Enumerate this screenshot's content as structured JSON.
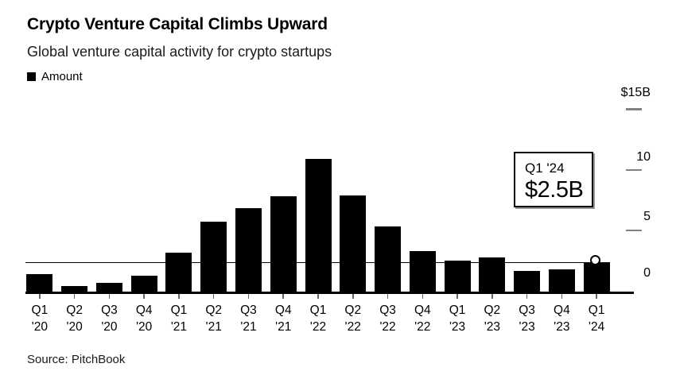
{
  "header": {
    "title": "Crypto Venture Capital Climbs Upward",
    "subtitle": "Global venture capital activity for crypto startups"
  },
  "legend": {
    "items": [
      {
        "label": "Amount",
        "color": "#000000",
        "swatch": "black-square"
      }
    ]
  },
  "chart_data": {
    "type": "bar",
    "title": "Crypto Venture Capital Climbs Upward",
    "subtitle": "Global venture capital activity for crypto startups",
    "series_name": "Amount",
    "categories": [
      "Q1 '20",
      "Q2 '20",
      "Q3 '20",
      "Q4 '20",
      "Q1 '21",
      "Q2 '21",
      "Q3 '21",
      "Q4 '21",
      "Q1 '22",
      "Q2 '22",
      "Q3 '22",
      "Q4 '22",
      "Q1 '23",
      "Q2 '23",
      "Q3 '23",
      "Q4 '23",
      "Q1 '24"
    ],
    "values": [
      1.5,
      0.5,
      0.8,
      1.4,
      3.3,
      5.8,
      6.9,
      7.9,
      11.0,
      8.0,
      5.4,
      3.4,
      2.6,
      2.9,
      1.8,
      1.9,
      2.5
    ],
    "unit": "billion USD",
    "xlabel": "",
    "ylabel": "$B",
    "ylim": [
      0,
      15
    ],
    "y_tick_labels": [
      "$15B",
      "10",
      "5",
      "0"
    ],
    "y_tick_values": [
      15,
      10,
      5,
      0
    ],
    "grid": "off",
    "legend_position": "top-left",
    "bar_color": "#000000",
    "reference_line_value": 2.5,
    "highlight_point": {
      "category": "Q1 '24",
      "value": 2.5,
      "marker": "white-circle"
    }
  },
  "annotation": {
    "label": "Q1 '24",
    "value": "$2.5B"
  },
  "footer": {
    "source": "Source: PitchBook"
  },
  "colors": {
    "background": "#ffffff",
    "bar": "#000000",
    "axis": "#000000",
    "tick_dash": "#808080",
    "x_tick": "#666666"
  }
}
